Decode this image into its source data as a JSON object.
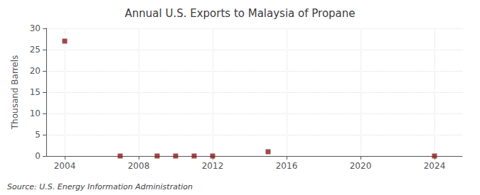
{
  "chart_data": {
    "type": "scatter",
    "title": "Annual U.S. Exports to Malaysia of Propane",
    "ylabel": "Thousand Barrels",
    "annotations": [
      "Source: U.S. Energy Information Administration"
    ],
    "x": [
      2004,
      2007,
      2009,
      2010,
      2011,
      2012,
      2015,
      2024
    ],
    "values": [
      27,
      0,
      0,
      0,
      0,
      0,
      1,
      0
    ],
    "color": "#8b1a1a",
    "marker": "square",
    "xlim": [
      2003,
      2025.5
    ],
    "xticks": [
      2004,
      2008,
      2012,
      2016,
      2020,
      2024
    ],
    "ylim": [
      0,
      30
    ],
    "yticks": [
      0,
      5,
      10,
      15,
      20,
      25,
      30
    ],
    "grid": true
  }
}
